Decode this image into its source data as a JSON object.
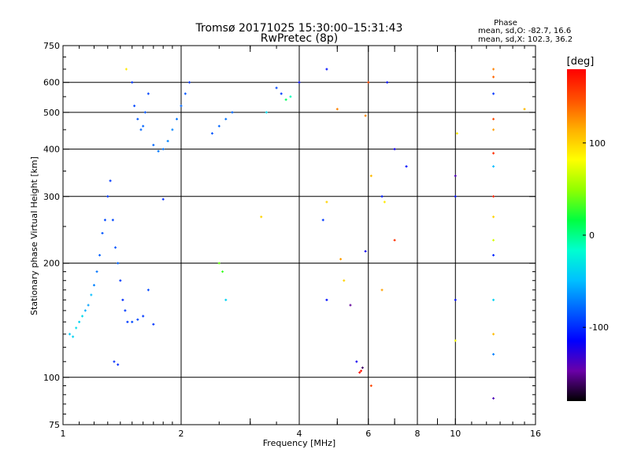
{
  "chart_data": {
    "type": "scatter",
    "title": "Tromsø 20171025 15:30:00–15:31:43",
    "subtitle": "RwPretec (8p)",
    "xlabel": "Frequency [MHz]",
    "ylabel": "Stationary phase Virtual Height [km]",
    "x_scale": "log",
    "y_scale": "log",
    "xlim": [
      1,
      16
    ],
    "ylim": [
      75,
      750
    ],
    "x_ticks": [
      1,
      2,
      4,
      6,
      8,
      10,
      16
    ],
    "y_ticks": [
      75,
      100,
      200,
      300,
      400,
      500,
      600,
      750
    ],
    "x_gridlines": [
      2,
      4,
      6,
      8,
      10
    ],
    "y_gridlines": [
      100,
      200,
      300,
      400,
      500,
      600
    ],
    "grid": true,
    "stats": {
      "heading": "Phase",
      "line_o": "mean, sd,O: -82.7, 16.6",
      "line_x": "mean, sd,X: 102.3, 36.2"
    },
    "colorbar": {
      "label": "[deg]",
      "ticks": [
        100,
        0,
        -100
      ],
      "range": [
        -180,
        180
      ],
      "colors": [
        "#000000",
        "#6a00a8",
        "#0000ff",
        "#0060ff",
        "#00c0ff",
        "#00ffd0",
        "#00ff40",
        "#90ff00",
        "#ffff00",
        "#ffb000",
        "#ff5000",
        "#ff0000"
      ]
    },
    "series": [
      {
        "points": [
          {
            "x": 1.04,
            "y": 130,
            "phase": -45
          },
          {
            "x": 1.06,
            "y": 128,
            "phase": -40
          },
          {
            "x": 1.08,
            "y": 135,
            "phase": -35
          },
          {
            "x": 1.1,
            "y": 140,
            "phase": -40
          },
          {
            "x": 1.12,
            "y": 145,
            "phase": -35
          },
          {
            "x": 1.14,
            "y": 150,
            "phase": -55
          },
          {
            "x": 1.16,
            "y": 155,
            "phase": -60
          },
          {
            "x": 1.18,
            "y": 165,
            "phase": -50
          },
          {
            "x": 1.2,
            "y": 175,
            "phase": -70
          },
          {
            "x": 1.22,
            "y": 190,
            "phase": -75
          },
          {
            "x": 1.24,
            "y": 210,
            "phase": -80
          },
          {
            "x": 1.26,
            "y": 240,
            "phase": -85
          },
          {
            "x": 1.28,
            "y": 260,
            "phase": -90
          },
          {
            "x": 1.3,
            "y": 300,
            "phase": -95
          },
          {
            "x": 1.32,
            "y": 330,
            "phase": -95
          },
          {
            "x": 1.34,
            "y": 260,
            "phase": -90
          },
          {
            "x": 1.36,
            "y": 220,
            "phase": -85
          },
          {
            "x": 1.38,
            "y": 200,
            "phase": -80
          },
          {
            "x": 1.4,
            "y": 180,
            "phase": -95
          },
          {
            "x": 1.42,
            "y": 160,
            "phase": -100
          },
          {
            "x": 1.44,
            "y": 150,
            "phase": -95
          },
          {
            "x": 1.46,
            "y": 140,
            "phase": -95
          },
          {
            "x": 1.5,
            "y": 140,
            "phase": -90
          },
          {
            "x": 1.55,
            "y": 142,
            "phase": -90
          },
          {
            "x": 1.6,
            "y": 145,
            "phase": -95
          },
          {
            "x": 1.65,
            "y": 170,
            "phase": -90
          },
          {
            "x": 1.7,
            "y": 138,
            "phase": -95
          },
          {
            "x": 1.35,
            "y": 110,
            "phase": -100
          },
          {
            "x": 1.38,
            "y": 108,
            "phase": -100
          },
          {
            "x": 1.5,
            "y": 600,
            "phase": -95
          },
          {
            "x": 1.52,
            "y": 520,
            "phase": -90
          },
          {
            "x": 1.55,
            "y": 480,
            "phase": -85
          },
          {
            "x": 1.58,
            "y": 450,
            "phase": -80
          },
          {
            "x": 1.6,
            "y": 460,
            "phase": -80
          },
          {
            "x": 1.62,
            "y": 500,
            "phase": -85
          },
          {
            "x": 1.65,
            "y": 560,
            "phase": -90
          },
          {
            "x": 1.7,
            "y": 410,
            "phase": -80
          },
          {
            "x": 1.75,
            "y": 395,
            "phase": -75
          },
          {
            "x": 1.8,
            "y": 400,
            "phase": -75
          },
          {
            "x": 1.85,
            "y": 420,
            "phase": -70
          },
          {
            "x": 1.9,
            "y": 450,
            "phase": -70
          },
          {
            "x": 1.95,
            "y": 480,
            "phase": -75
          },
          {
            "x": 2.0,
            "y": 520,
            "phase": -80
          },
          {
            "x": 2.05,
            "y": 560,
            "phase": -85
          },
          {
            "x": 2.1,
            "y": 600,
            "phase": -95
          },
          {
            "x": 2.4,
            "y": 440,
            "phase": -85
          },
          {
            "x": 2.5,
            "y": 460,
            "phase": -80
          },
          {
            "x": 2.6,
            "y": 480,
            "phase": -75
          },
          {
            "x": 2.7,
            "y": 500,
            "phase": -80
          },
          {
            "x": 1.45,
            "y": 650,
            "phase": 90
          },
          {
            "x": 1.8,
            "y": 295,
            "phase": -100
          },
          {
            "x": 2.5,
            "y": 200,
            "phase": 40
          },
          {
            "x": 2.55,
            "y": 190,
            "phase": 30
          },
          {
            "x": 2.6,
            "y": 160,
            "phase": -40
          },
          {
            "x": 3.2,
            "y": 265,
            "phase": 100
          },
          {
            "x": 3.3,
            "y": 500,
            "phase": -35
          },
          {
            "x": 3.5,
            "y": 580,
            "phase": -90
          },
          {
            "x": 3.6,
            "y": 560,
            "phase": -95
          },
          {
            "x": 3.7,
            "y": 540,
            "phase": 10
          },
          {
            "x": 3.8,
            "y": 550,
            "phase": -10
          },
          {
            "x": 4.0,
            "y": 600,
            "phase": -110
          },
          {
            "x": 4.7,
            "y": 650,
            "phase": -110
          },
          {
            "x": 4.7,
            "y": 290,
            "phase": 100
          },
          {
            "x": 4.6,
            "y": 260,
            "phase": -95
          },
          {
            "x": 4.7,
            "y": 160,
            "phase": -110
          },
          {
            "x": 5.0,
            "y": 510,
            "phase": 130
          },
          {
            "x": 5.1,
            "y": 205,
            "phase": 120
          },
          {
            "x": 5.2,
            "y": 180,
            "phase": 100
          },
          {
            "x": 5.4,
            "y": 155,
            "phase": -150
          },
          {
            "x": 5.6,
            "y": 110,
            "phase": -120
          },
          {
            "x": 5.7,
            "y": 103,
            "phase": 175
          },
          {
            "x": 5.75,
            "y": 104,
            "phase": 170
          },
          {
            "x": 5.8,
            "y": 106,
            "phase": -160
          },
          {
            "x": 5.9,
            "y": 215,
            "phase": -120
          },
          {
            "x": 5.9,
            "y": 490,
            "phase": 130
          },
          {
            "x": 6.0,
            "y": 600,
            "phase": 150
          },
          {
            "x": 6.1,
            "y": 340,
            "phase": 110
          },
          {
            "x": 6.5,
            "y": 300,
            "phase": -105
          },
          {
            "x": 6.6,
            "y": 290,
            "phase": 90
          },
          {
            "x": 6.7,
            "y": 600,
            "phase": -110
          },
          {
            "x": 7.0,
            "y": 230,
            "phase": 160
          },
          {
            "x": 7.0,
            "y": 400,
            "phase": -120
          },
          {
            "x": 7.5,
            "y": 360,
            "phase": -110
          },
          {
            "x": 6.5,
            "y": 170,
            "phase": 120
          },
          {
            "x": 6.1,
            "y": 95,
            "phase": 150
          },
          {
            "x": 10.0,
            "y": 340,
            "phase": -140
          },
          {
            "x": 10.0,
            "y": 300,
            "phase": -110
          },
          {
            "x": 10.0,
            "y": 160,
            "phase": -110
          },
          {
            "x": 10.0,
            "y": 125,
            "phase": 80
          },
          {
            "x": 10.1,
            "y": 440,
            "phase": 90
          },
          {
            "x": 12.5,
            "y": 650,
            "phase": 130
          },
          {
            "x": 12.5,
            "y": 620,
            "phase": 140
          },
          {
            "x": 12.5,
            "y": 560,
            "phase": -95
          },
          {
            "x": 12.5,
            "y": 480,
            "phase": 150
          },
          {
            "x": 12.5,
            "y": 450,
            "phase": 120
          },
          {
            "x": 12.5,
            "y": 390,
            "phase": 160
          },
          {
            "x": 12.5,
            "y": 360,
            "phase": -50
          },
          {
            "x": 12.5,
            "y": 300,
            "phase": 165
          },
          {
            "x": 12.5,
            "y": 265,
            "phase": 100
          },
          {
            "x": 12.5,
            "y": 230,
            "phase": 70
          },
          {
            "x": 12.5,
            "y": 210,
            "phase": -100
          },
          {
            "x": 12.5,
            "y": 160,
            "phase": -40
          },
          {
            "x": 12.5,
            "y": 130,
            "phase": 110
          },
          {
            "x": 12.5,
            "y": 115,
            "phase": -70
          },
          {
            "x": 12.5,
            "y": 88,
            "phase": -140
          },
          {
            "x": 15.0,
            "y": 510,
            "phase": 110
          }
        ]
      }
    ]
  }
}
